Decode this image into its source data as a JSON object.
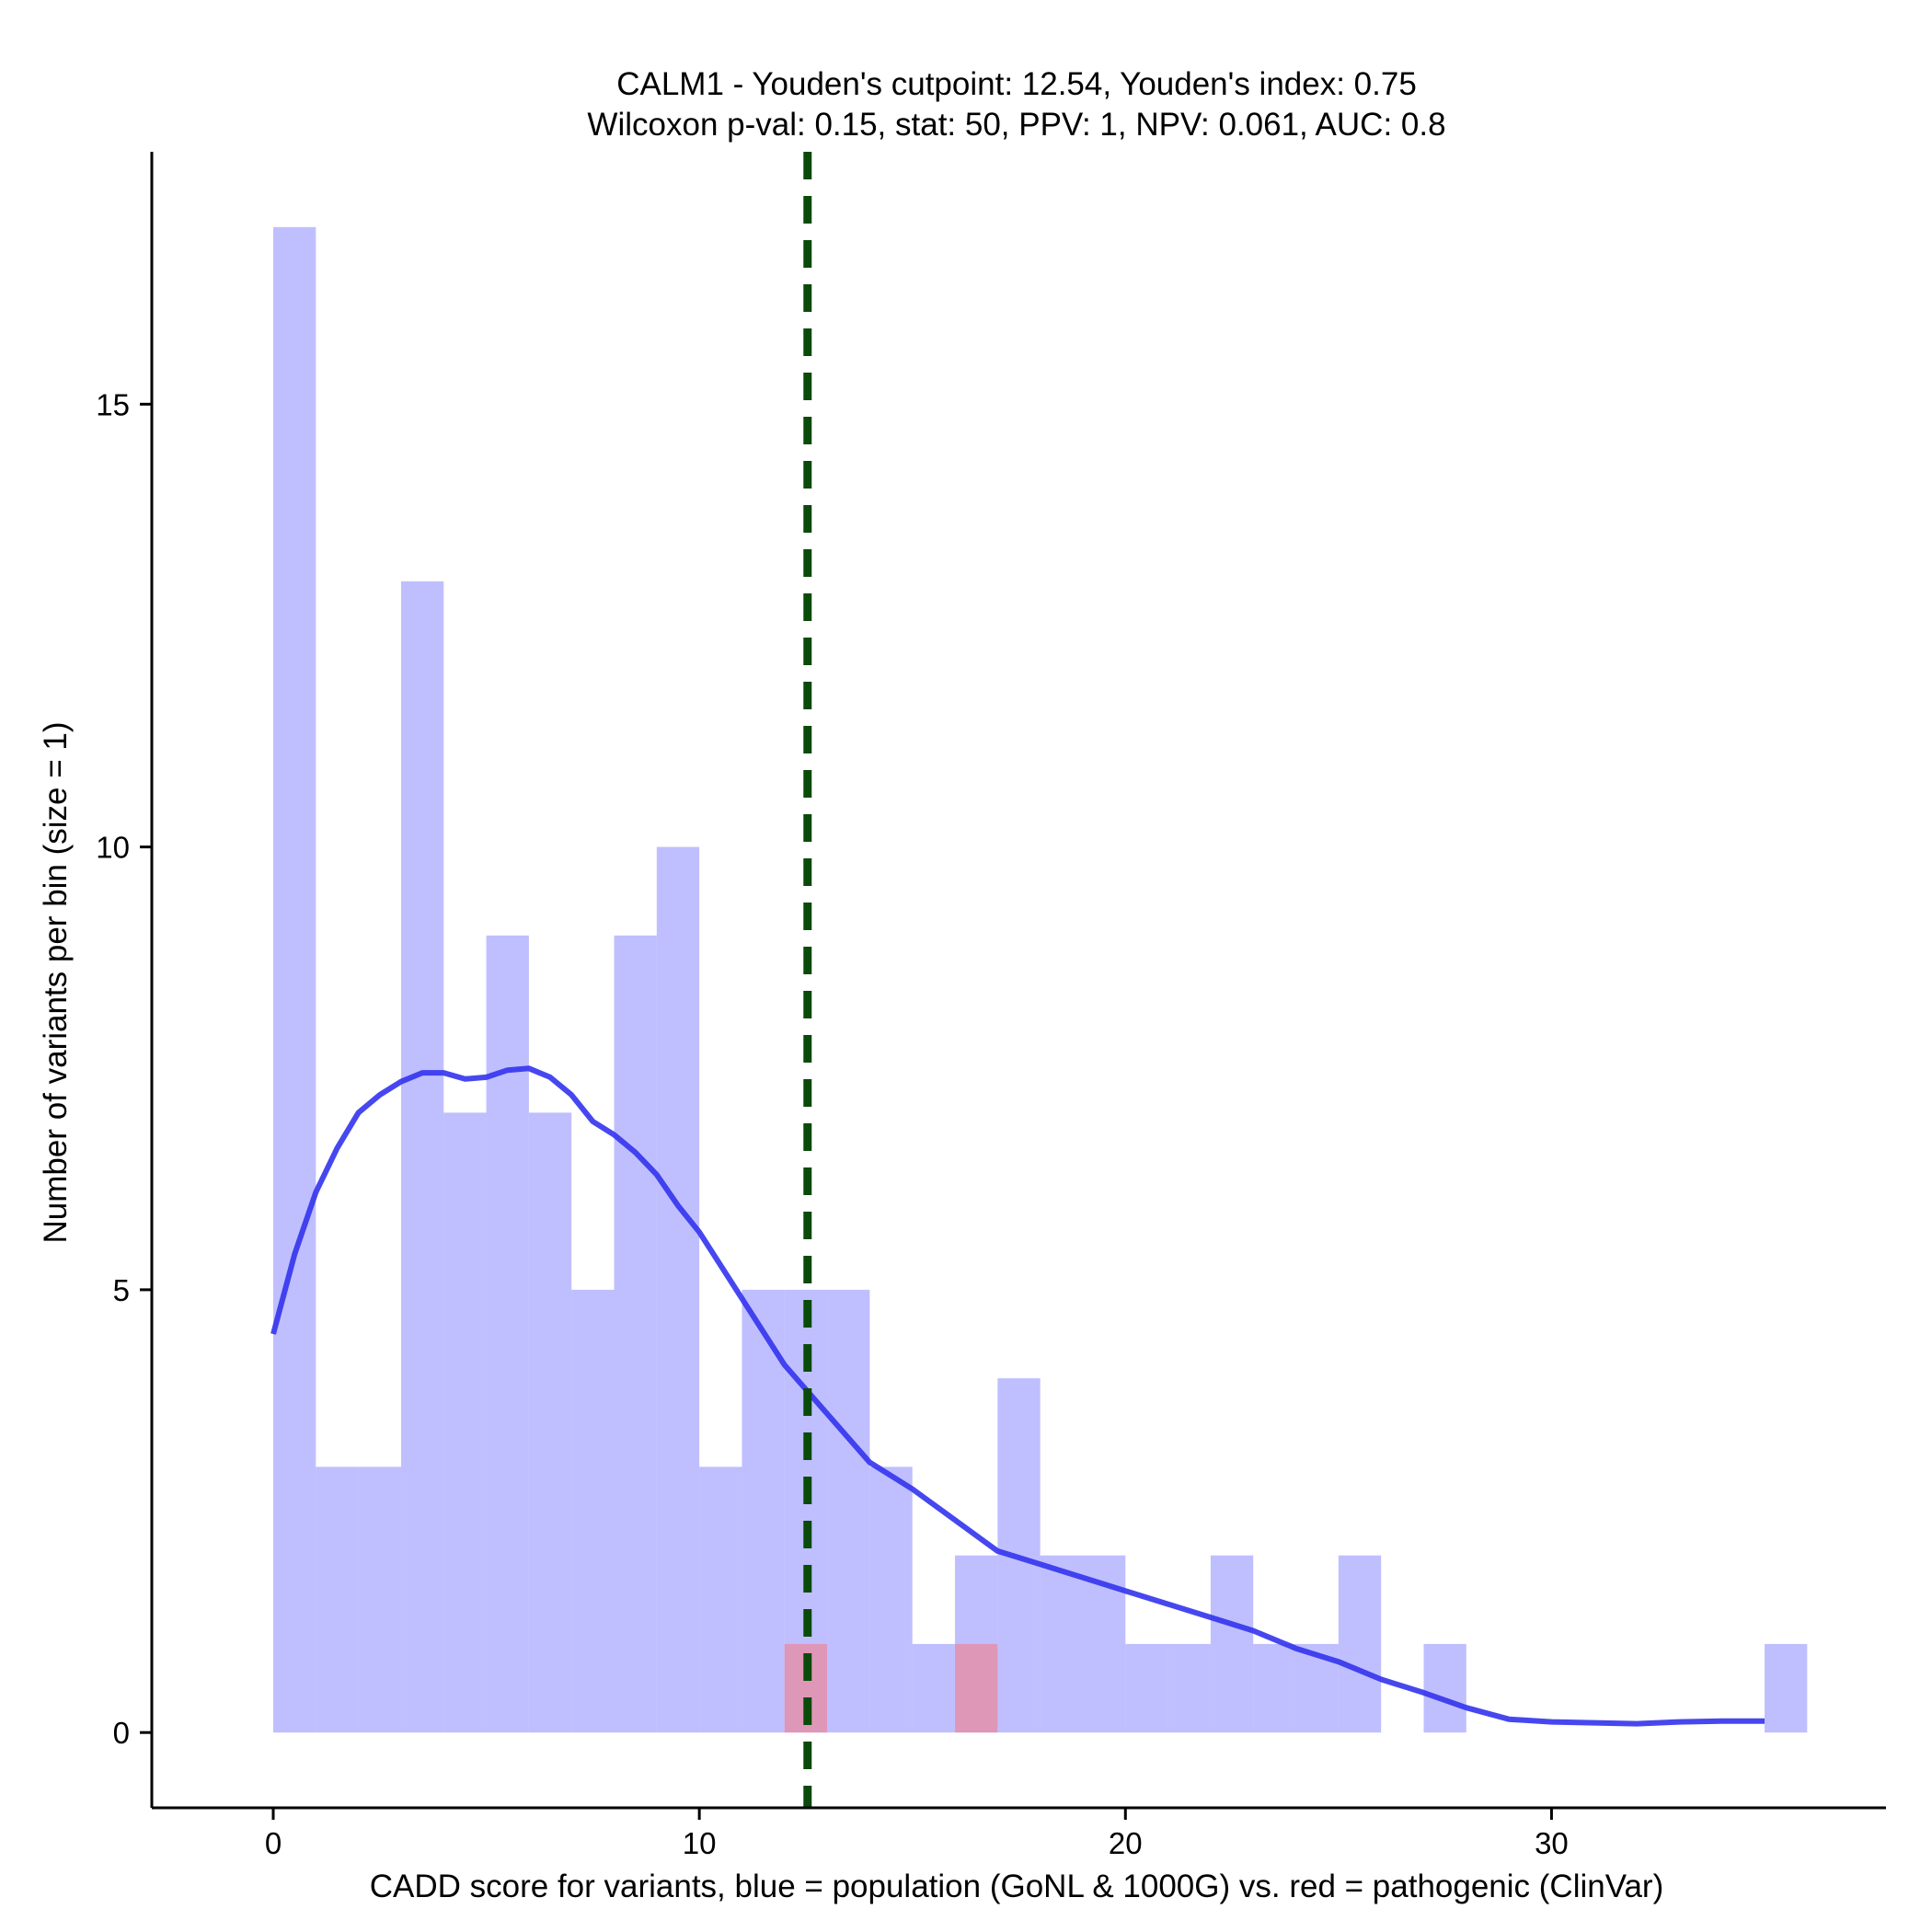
{
  "chart_data": {
    "type": "histogram",
    "title_line1": "CALM1 - Youden's cutpoint: 12.54, Youden's index: 0.75",
    "title_line2": "Wilcoxon p-val: 0.15, stat: 50, PPV: 1, NPV: 0.061, AUC: 0.8",
    "xlabel": "CADD score for variants, blue = population (GoNL & 1000G) vs. red = pathogenic (ClinVar)",
    "ylabel": "Number of variants per bin (size = 1)",
    "xlim": [
      -2.85,
      37.85
    ],
    "ylim": [
      -0.85,
      17.85
    ],
    "x_ticks": [
      0,
      10,
      20,
      30
    ],
    "x_tick_labels": [
      "0",
      "10",
      "20",
      "30"
    ],
    "y_ticks": [
      0,
      5,
      10,
      15
    ],
    "y_tick_labels": [
      "0",
      "5",
      "10",
      "15"
    ],
    "bin_width": 1,
    "series": [
      {
        "name": "population (GoNL & 1000G)",
        "color": "#8080ff",
        "opacity": 0.5,
        "bins_start": [
          0,
          1,
          2,
          3,
          4,
          5,
          6,
          7,
          8,
          9,
          10,
          11,
          12,
          13,
          14,
          15,
          16,
          17,
          18,
          19,
          20,
          21,
          22,
          23,
          24,
          25,
          26,
          27,
          28,
          29,
          30,
          31,
          32,
          33,
          34,
          35
        ],
        "counts": [
          17,
          3,
          3,
          13,
          7,
          9,
          7,
          5,
          9,
          10,
          3,
          5,
          5,
          5,
          3,
          1,
          2,
          4,
          2,
          2,
          1,
          1,
          2,
          1,
          1,
          2,
          0,
          1,
          0,
          0,
          0,
          0,
          0,
          0,
          0,
          1
        ]
      },
      {
        "name": "pathogenic (ClinVar)",
        "color": "#ff6f6f",
        "opacity": 0.5,
        "bins_start": [
          12,
          16
        ],
        "counts": [
          1,
          1
        ]
      }
    ],
    "density_curve": {
      "color": "#3333ee",
      "x": [
        0,
        0.5,
        1,
        1.5,
        2,
        2.5,
        3,
        3.5,
        4,
        4.5,
        5,
        5.5,
        6,
        6.5,
        7,
        7.5,
        8,
        8.5,
        9,
        9.5,
        10,
        11,
        12,
        13,
        14,
        15,
        16,
        17,
        18,
        19,
        20,
        21,
        22,
        23,
        24,
        25,
        26,
        27,
        28,
        29,
        30,
        31,
        32,
        33,
        34,
        35
      ],
      "y": [
        4.5,
        5.4,
        6.1,
        6.6,
        7.0,
        7.2,
        7.35,
        7.45,
        7.45,
        7.38,
        7.4,
        7.48,
        7.5,
        7.4,
        7.2,
        6.9,
        6.75,
        6.55,
        6.3,
        5.95,
        5.65,
        4.9,
        4.15,
        3.6,
        3.05,
        2.75,
        2.4,
        2.05,
        1.9,
        1.75,
        1.6,
        1.45,
        1.3,
        1.15,
        0.95,
        0.8,
        0.6,
        0.45,
        0.28,
        0.15,
        0.12,
        0.11,
        0.1,
        0.12,
        0.13,
        0.13
      ]
    },
    "cutpoint": {
      "x": 12.54,
      "color": "#0a4a0a",
      "style": "dashed"
    }
  }
}
